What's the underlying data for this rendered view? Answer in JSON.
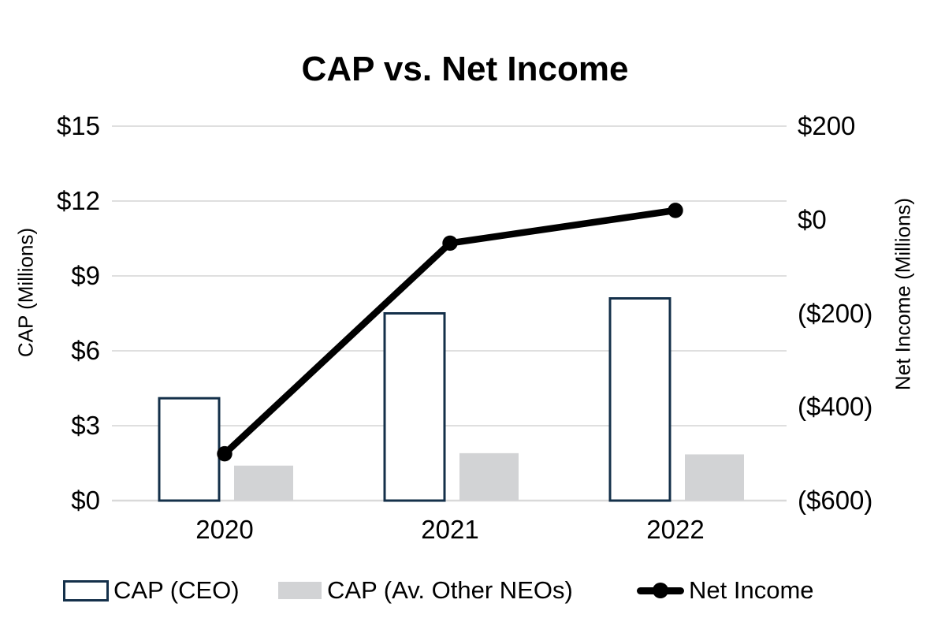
{
  "title": "CAP vs. Net Income",
  "colors": {
    "ceo_bar_border": "#14304a",
    "ceo_bar_fill": "#ffffff",
    "neo_bar_fill": "#d2d3d5",
    "line": "#000000",
    "gridline": "#dfdfdf",
    "baseline": "#d9d9d9",
    "text": "#000000"
  },
  "left_axis": {
    "title": "CAP (Millions)",
    "tick_labels": [
      "$15",
      "$12",
      "$9",
      "$6",
      "$3",
      "$0"
    ],
    "tick_values": [
      15,
      12,
      9,
      6,
      3,
      0
    ]
  },
  "right_axis": {
    "title": "Net Income (Millions)",
    "tick_labels": [
      "$200",
      "$0",
      "($200)",
      "($400)",
      "($600)"
    ],
    "tick_values": [
      200,
      0,
      -200,
      -400,
      -600
    ]
  },
  "x_axis": {
    "categories": [
      "2020",
      "2021",
      "2022"
    ]
  },
  "legend": {
    "items": [
      {
        "label": "CAP (CEO)",
        "swatch": "outlined-bar"
      },
      {
        "label": "CAP (Av. Other NEOs)",
        "swatch": "filled-bar"
      },
      {
        "label": "Net Income",
        "swatch": "line-marker"
      }
    ]
  },
  "chart_data": {
    "type": "combo",
    "title": "CAP vs. Net Income",
    "categories": [
      "2020",
      "2021",
      "2022"
    ],
    "series": [
      {
        "name": "CAP (CEO)",
        "type": "bar",
        "axis": "left",
        "values": [
          4.1,
          7.5,
          8.1
        ]
      },
      {
        "name": "CAP (Av. Other NEOs)",
        "type": "bar",
        "axis": "left",
        "values": [
          1.4,
          1.9,
          1.85
        ]
      },
      {
        "name": "Net Income",
        "type": "line",
        "axis": "right",
        "values": [
          -500,
          -50,
          20
        ]
      }
    ],
    "left_ylabel": "CAP (Millions)",
    "right_ylabel": "Net Income (Millions)",
    "left_ylim": [
      0,
      15
    ],
    "right_ylim": [
      -600,
      200
    ],
    "left_tick_step": 3,
    "right_tick_step": 200,
    "grid": true,
    "legend_position": "bottom"
  }
}
